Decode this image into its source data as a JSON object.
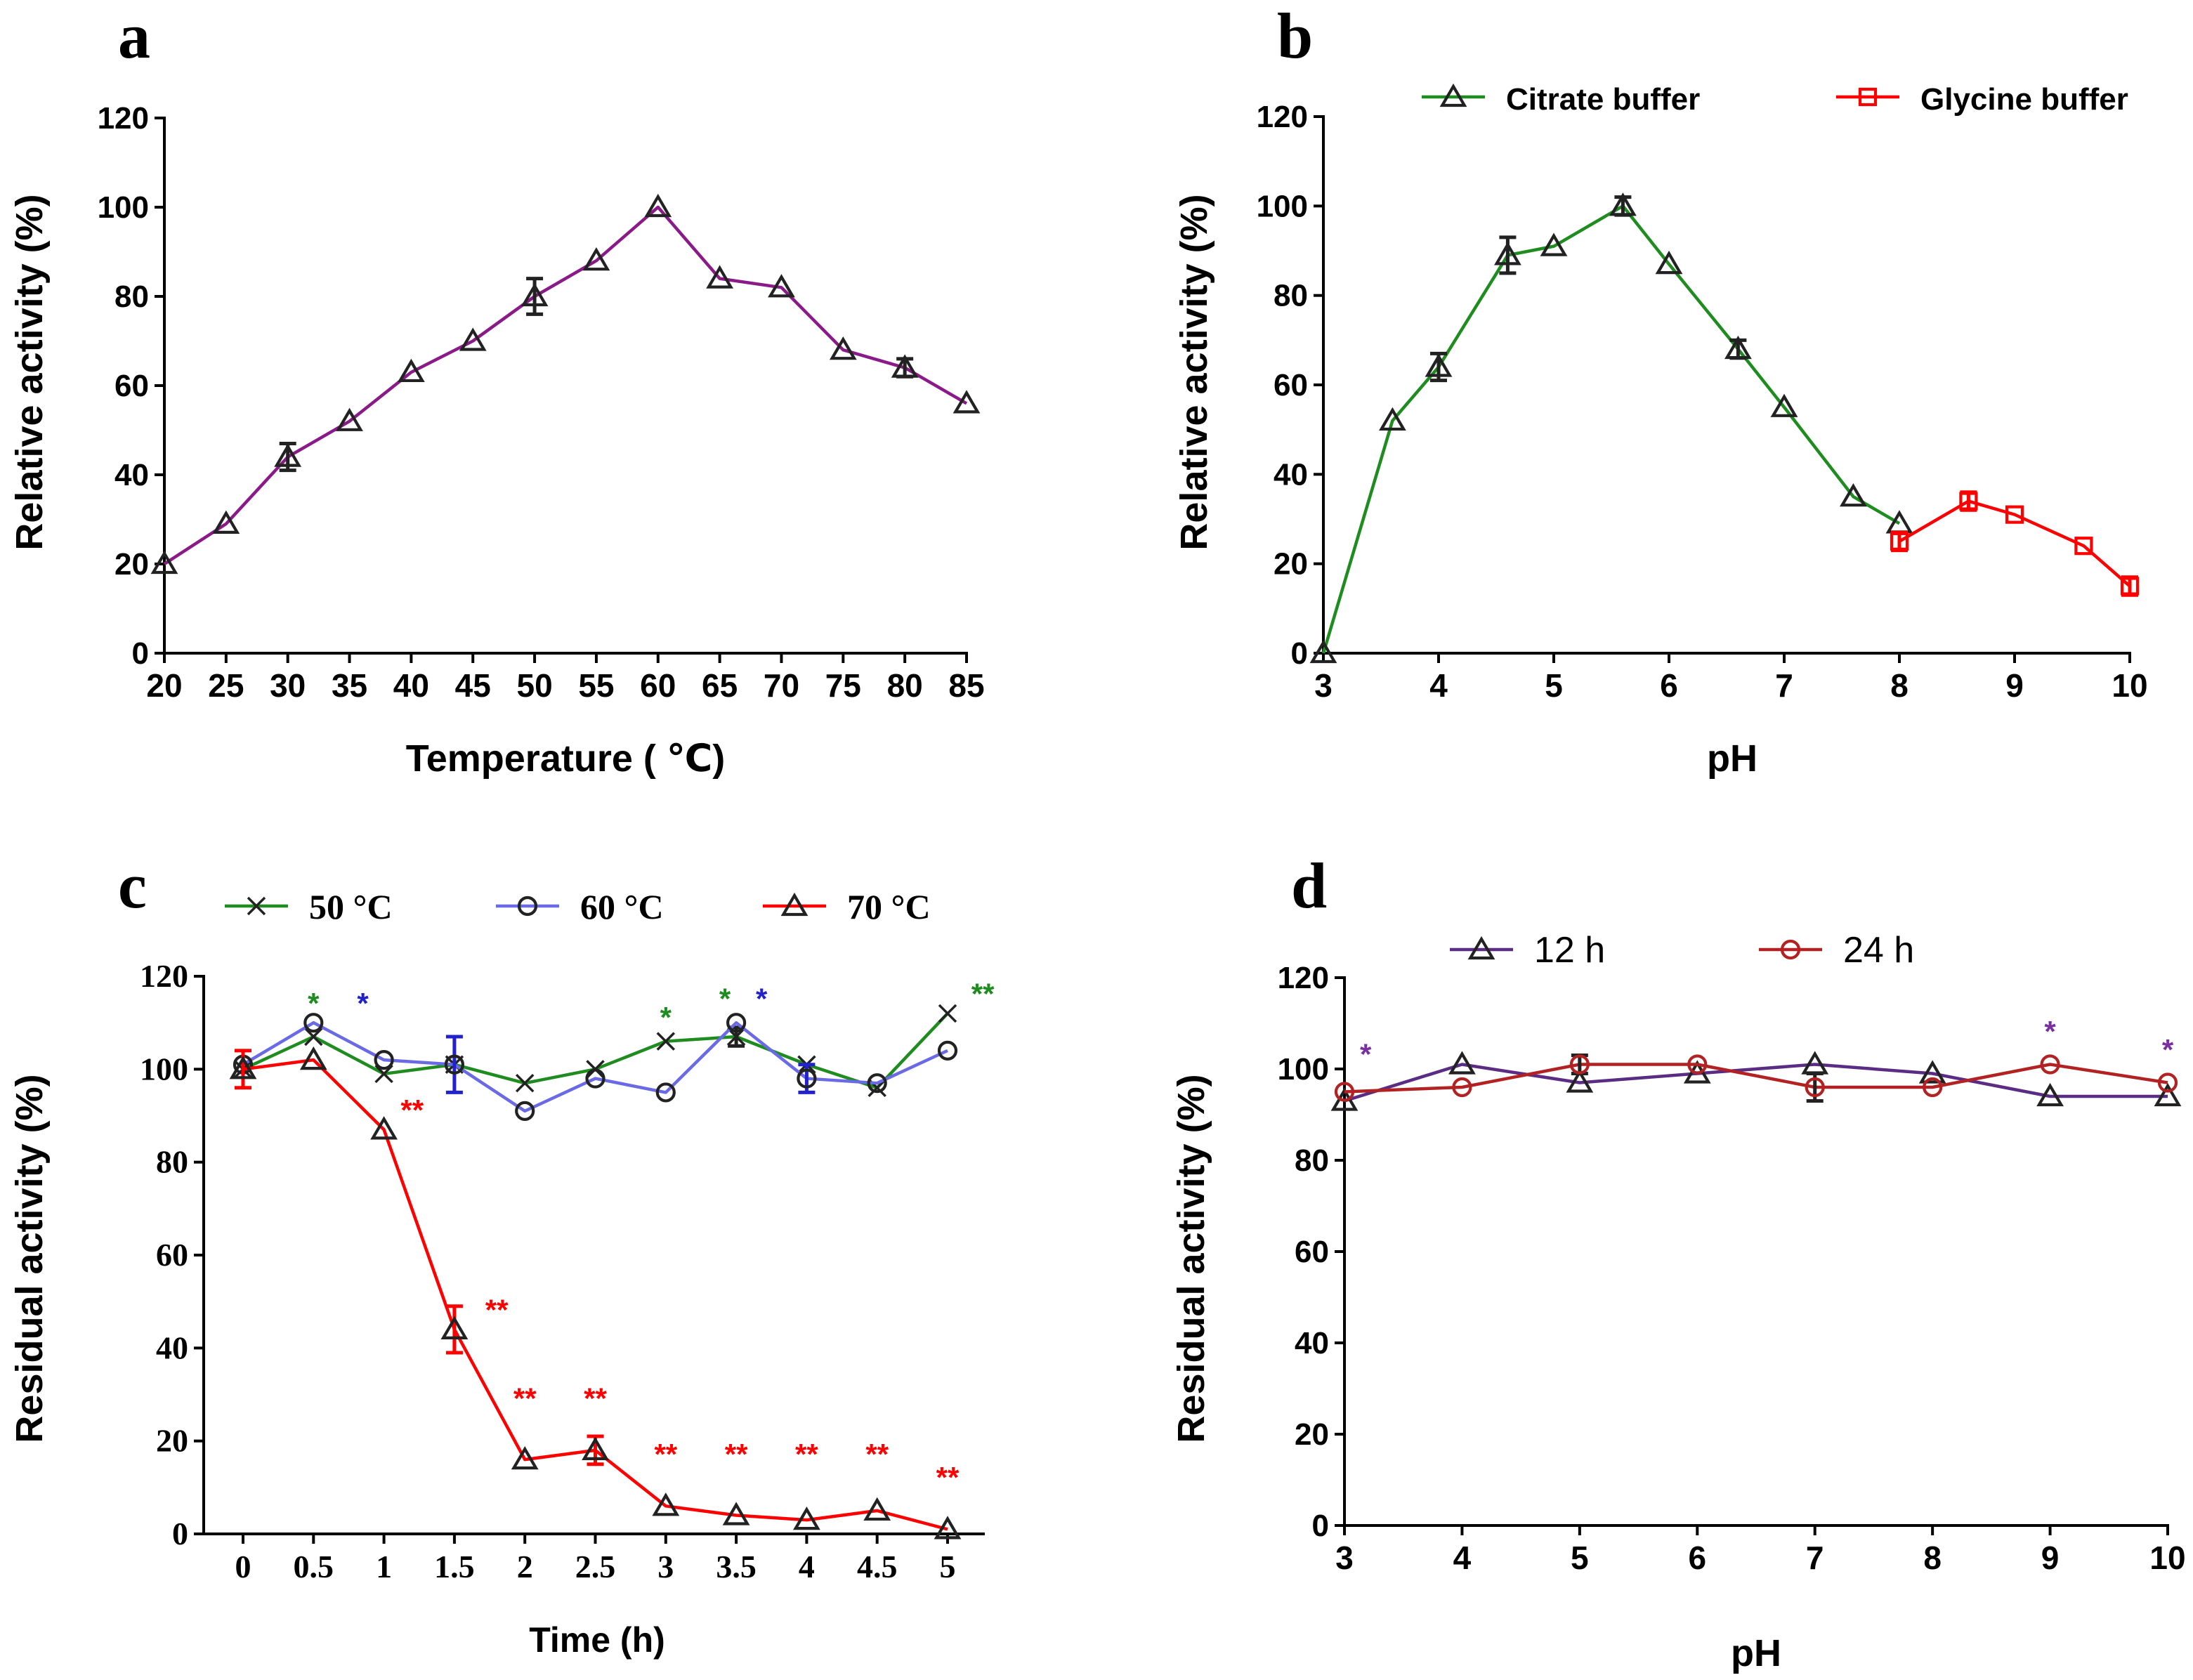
{
  "chart_data": [
    {
      "panel": "a",
      "type": "line",
      "xlabel": "Temperature ( ℃)",
      "ylabel": "Relative activity (%)",
      "xlim": [
        20,
        85
      ],
      "ylim": [
        0,
        120
      ],
      "xticks": [
        "20",
        "25",
        "30",
        "35",
        "40",
        "45",
        "50",
        "55",
        "60",
        "65",
        "70",
        "75",
        "80",
        "85"
      ],
      "yticks": [
        "0",
        "20",
        "40",
        "60",
        "80",
        "100",
        "120"
      ],
      "series": [
        {
          "name": "Temperature",
          "color": "#8B1A89",
          "marker": "triangle",
          "x": [
            20,
            25,
            30,
            35,
            40,
            45,
            50,
            55,
            60,
            65,
            70,
            75,
            80,
            85
          ],
          "values": [
            20,
            29,
            44,
            52,
            63,
            70,
            80,
            88,
            100,
            84,
            82,
            68,
            64,
            56
          ],
          "err": [
            1,
            1,
            3,
            1,
            1,
            1,
            4,
            1,
            1,
            1,
            1,
            1,
            2,
            1
          ]
        }
      ]
    },
    {
      "panel": "b",
      "type": "line",
      "xlabel": "pH",
      "ylabel": "Relative activity (%)",
      "xlim": [
        3,
        10
      ],
      "ylim": [
        0,
        120
      ],
      "xticks": [
        "3",
        "4",
        "5",
        "6",
        "7",
        "8",
        "9",
        "10"
      ],
      "yticks": [
        "0",
        "20",
        "40",
        "60",
        "80",
        "100",
        "120"
      ],
      "series": [
        {
          "name": "Citrate  buffer",
          "color": "#1E8C1E",
          "marker": "triangle",
          "x": [
            3,
            3.6,
            4,
            4.6,
            5,
            5.6,
            6,
            6.6,
            7,
            7.6,
            8
          ],
          "values": [
            0,
            52,
            64,
            89,
            91,
            100,
            87,
            68,
            55,
            35,
            29
          ],
          "err": [
            0,
            1,
            3,
            4,
            1,
            2,
            1,
            2,
            1,
            1,
            1
          ]
        },
        {
          "name": "Glycine buffer",
          "color": "#FF0000",
          "marker": "square",
          "x": [
            8,
            8.6,
            9,
            9.6,
            10
          ],
          "values": [
            25,
            34,
            31,
            24,
            15
          ],
          "err": [
            2,
            2,
            1,
            1,
            2
          ]
        }
      ]
    },
    {
      "panel": "c",
      "type": "line",
      "xlabel": "Time (h)",
      "ylabel": "Residual activity (%)",
      "ylim": [
        0,
        120
      ],
      "categories": [
        "0",
        "0.5",
        "1",
        "1.5",
        "2",
        "2.5",
        "3",
        "3.5",
        "4",
        "4.5",
        "5"
      ],
      "yticks": [
        "0",
        "20",
        "40",
        "60",
        "80",
        "100",
        "120"
      ],
      "series": [
        {
          "name": "50 °C",
          "color": "#1E8C1E",
          "marker": "x",
          "values": [
            100,
            107,
            99,
            101,
            97,
            100,
            106,
            107,
            101,
            96,
            112
          ],
          "err": [
            1,
            1,
            1,
            1,
            1,
            1,
            1,
            2,
            1,
            1,
            1
          ]
        },
        {
          "name": "60 °C",
          "color": "#6A6AE6",
          "marker": "circle",
          "values": [
            101,
            110,
            102,
            101,
            91,
            98,
            95,
            110,
            98,
            97,
            104
          ],
          "err": [
            1,
            1,
            1,
            6,
            1,
            1,
            1,
            1,
            3,
            1,
            1
          ]
        },
        {
          "name": "70 °C",
          "color": "#FF0000",
          "marker": "triangle",
          "values": [
            100,
            102,
            87,
            44,
            16,
            18,
            6,
            4,
            3,
            5,
            1
          ],
          "err": [
            4,
            1,
            1,
            5,
            1,
            3,
            1,
            1,
            1,
            1,
            1
          ]
        }
      ],
      "annotations": [
        {
          "text": "*",
          "x": 0.5,
          "y": 112,
          "color": "#1E8C1E"
        },
        {
          "text": "*",
          "x": 0.85,
          "y": 112,
          "color": "#2222CC"
        },
        {
          "text": "**",
          "x": 1.2,
          "y": 89,
          "color": "#FF0000"
        },
        {
          "text": "**",
          "x": 1.8,
          "y": 46,
          "color": "#FF0000"
        },
        {
          "text": "**",
          "x": 2.0,
          "y": 27,
          "color": "#FF0000"
        },
        {
          "text": "**",
          "x": 2.5,
          "y": 27,
          "color": "#FF0000"
        },
        {
          "text": "*",
          "x": 3.0,
          "y": 109,
          "color": "#1E8C1E"
        },
        {
          "text": "**",
          "x": 3.0,
          "y": 15,
          "color": "#FF0000"
        },
        {
          "text": "*",
          "x": 3.42,
          "y": 113,
          "color": "#1E8C1E"
        },
        {
          "text": "*",
          "x": 3.68,
          "y": 113,
          "color": "#2222CC"
        },
        {
          "text": "**",
          "x": 3.5,
          "y": 15,
          "color": "#FF0000"
        },
        {
          "text": "**",
          "x": 4.0,
          "y": 15,
          "color": "#FF0000"
        },
        {
          "text": "**",
          "x": 4.5,
          "y": 15,
          "color": "#FF0000"
        },
        {
          "text": "**",
          "x": 5.0,
          "y": 10,
          "color": "#FF0000"
        },
        {
          "text": "**",
          "x": 5.25,
          "y": 114,
          "color": "#1E8C1E"
        }
      ]
    },
    {
      "panel": "d",
      "type": "line",
      "xlabel": "pH",
      "ylabel": "Residual activity (%)",
      "xlim": [
        3,
        10
      ],
      "ylim": [
        0,
        120
      ],
      "xticks": [
        "3",
        "4",
        "5",
        "6",
        "7",
        "8",
        "9",
        "10"
      ],
      "yticks": [
        "0",
        "20",
        "40",
        "60",
        "80",
        "100",
        "120"
      ],
      "series": [
        {
          "name": "12 h",
          "color": "#5B2C83",
          "marker": "triangle",
          "x": [
            3,
            4,
            5,
            6,
            7,
            8,
            9,
            10
          ],
          "values": [
            93,
            101,
            97,
            99,
            101,
            99,
            94,
            94
          ],
          "err": [
            1,
            1,
            1,
            1,
            1,
            1,
            1,
            1
          ]
        },
        {
          "name": "24 h",
          "color": "#B22222",
          "marker": "circle",
          "x": [
            3,
            4,
            5,
            6,
            7,
            8,
            9,
            10
          ],
          "values": [
            95,
            96,
            101,
            101,
            96,
            96,
            101,
            97
          ],
          "err": [
            1,
            1,
            2,
            1,
            3,
            1,
            1,
            1
          ]
        }
      ],
      "annotations": [
        {
          "text": "*",
          "x": 3.18,
          "y": 101,
          "color": "#7A2FA0"
        },
        {
          "text": "*",
          "x": 9.0,
          "y": 106,
          "color": "#7A2FA0"
        },
        {
          "text": "*",
          "x": 10.0,
          "y": 102,
          "color": "#7A2FA0"
        }
      ]
    }
  ]
}
